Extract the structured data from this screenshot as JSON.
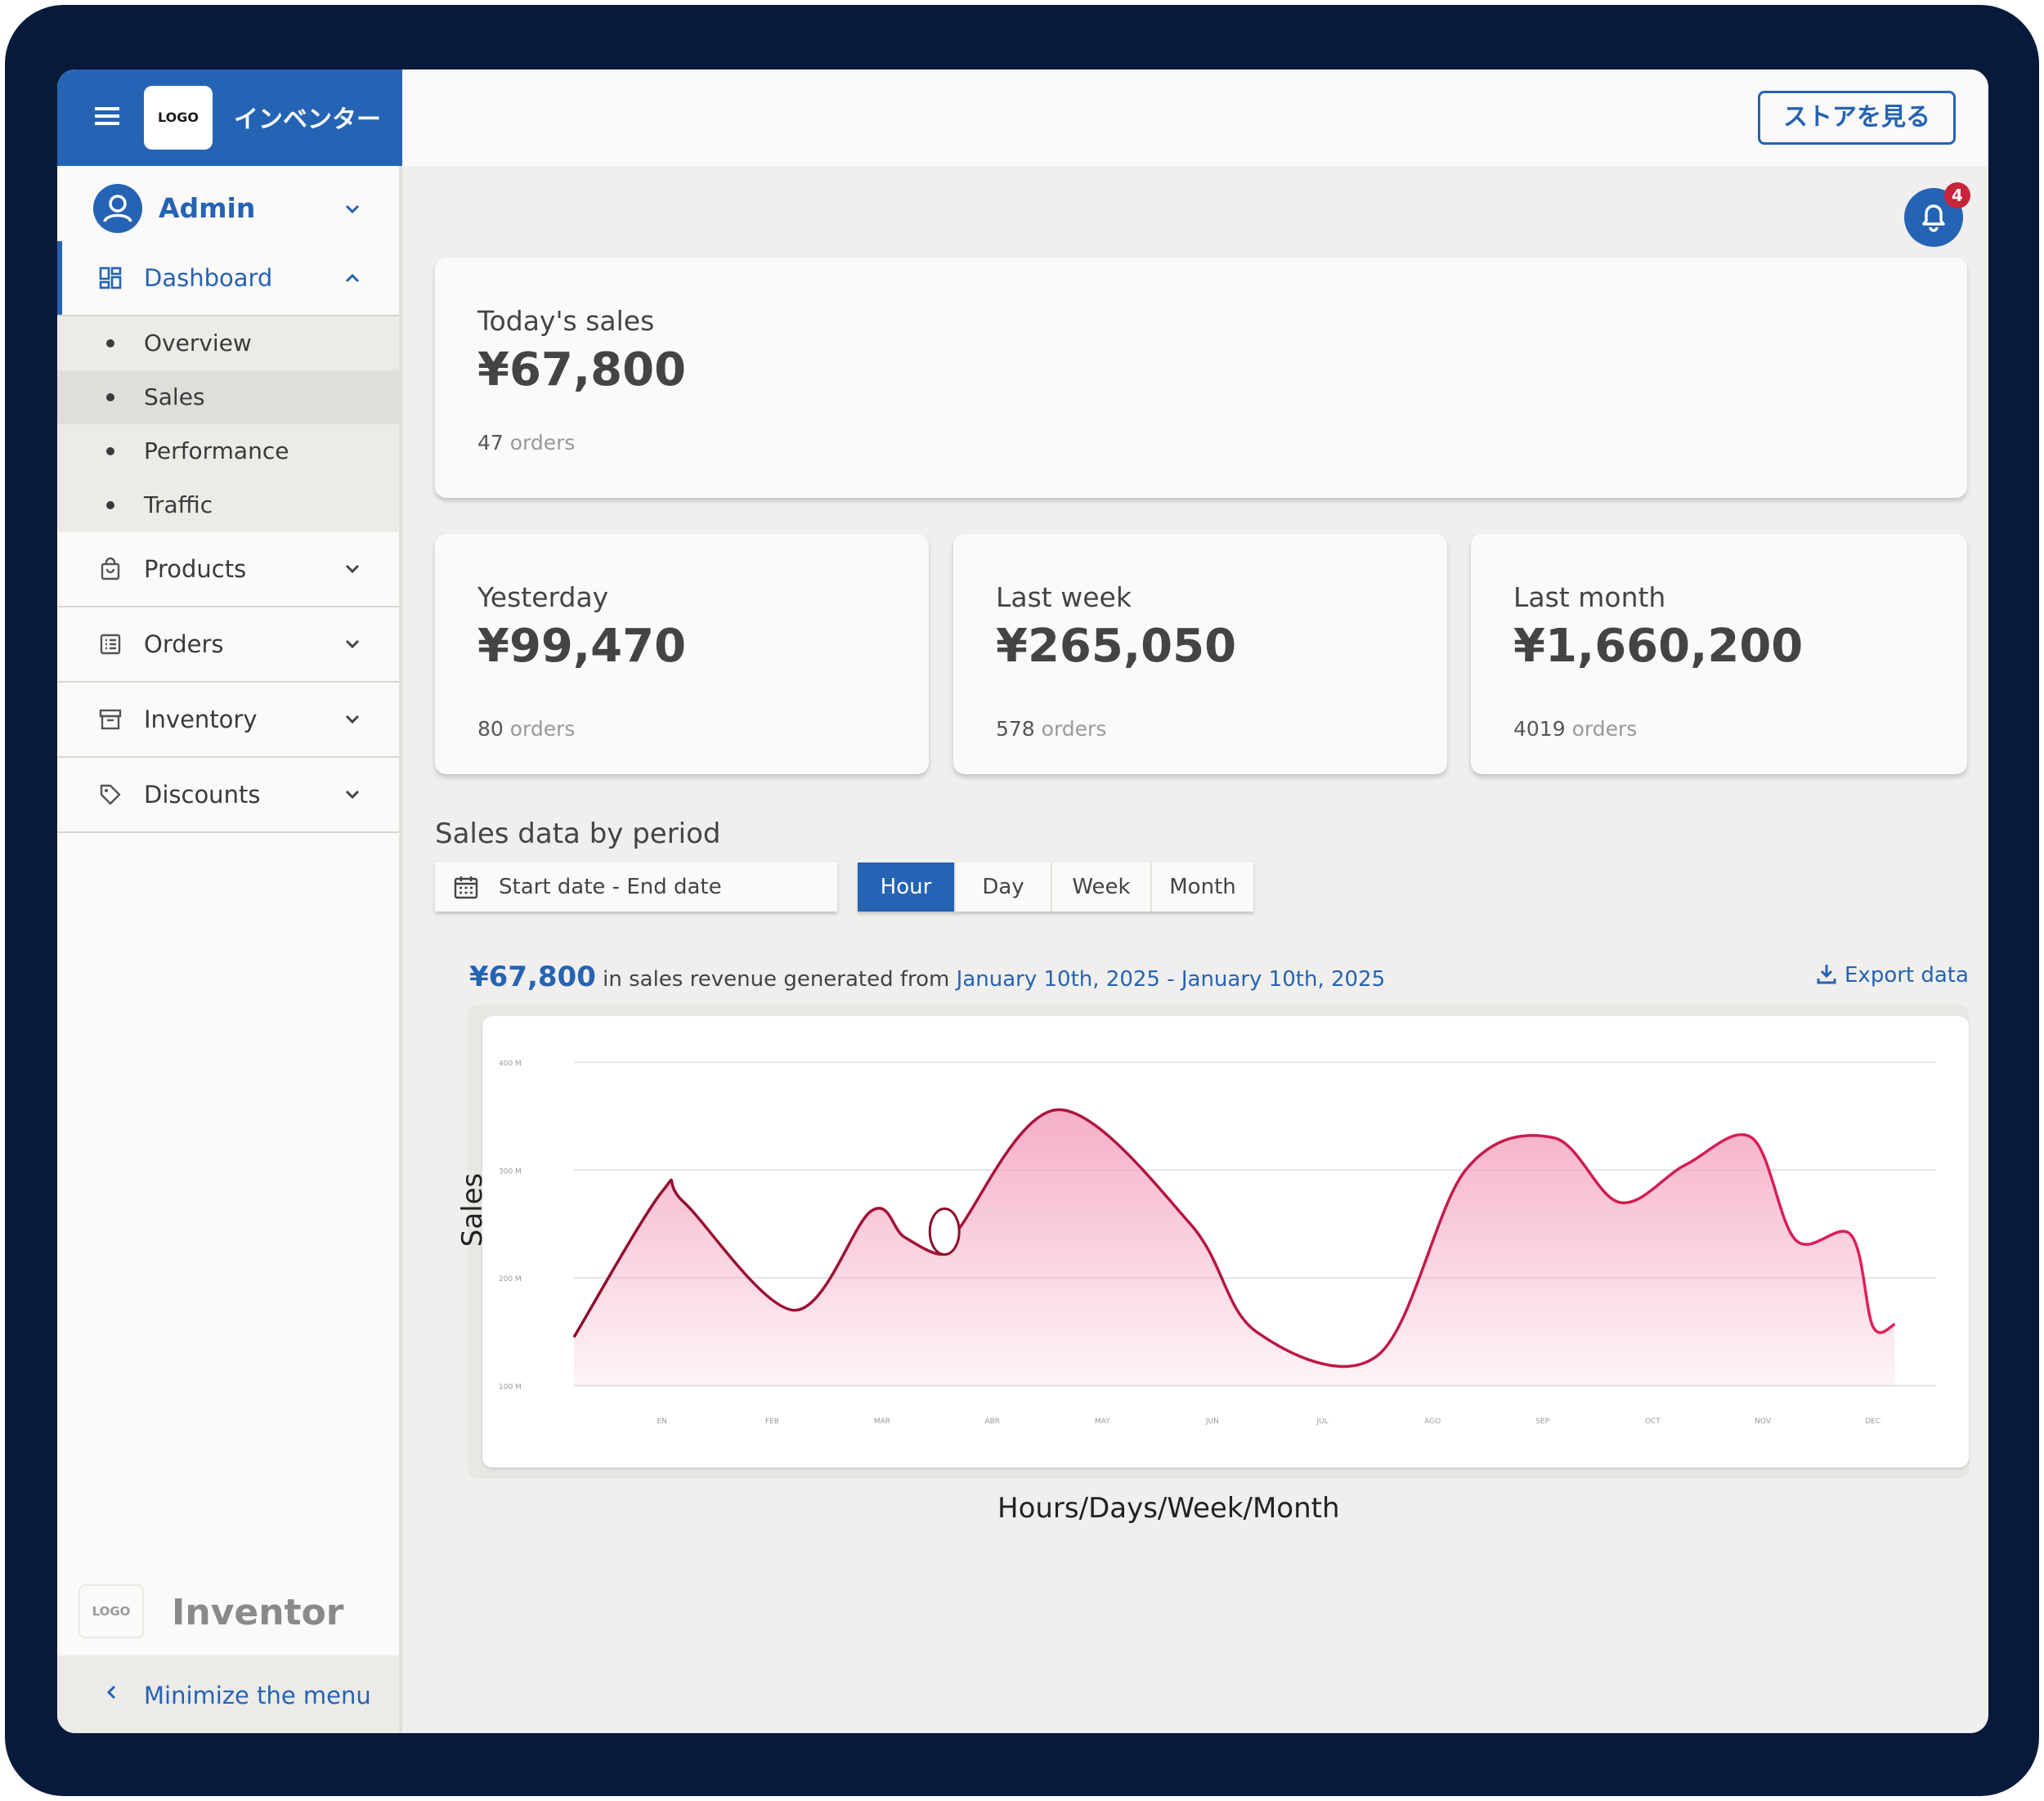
{
  "brand": {
    "logo_text": "LOGO",
    "name": "インベンター"
  },
  "user": {
    "name": "Admin"
  },
  "sidebar": {
    "items": [
      {
        "label": "Dashboard",
        "icon": "dashboard-icon",
        "expanded": true
      },
      {
        "label": "Products",
        "icon": "bag-icon"
      },
      {
        "label": "Orders",
        "icon": "list-icon"
      },
      {
        "label": "Inventory",
        "icon": "archive-icon"
      },
      {
        "label": "Discounts",
        "icon": "tag-icon"
      }
    ],
    "submenu": [
      "Overview",
      "Sales",
      "Performance",
      "Traffic"
    ],
    "selected_sub": "Sales",
    "footer_logo": "LOGO",
    "footer_name": "Inventor",
    "minimize_label": "Minimize the menu"
  },
  "topbar": {
    "store_button": "ストアを見る"
  },
  "notifications": {
    "count": "4"
  },
  "cards": {
    "today": {
      "title": "Today's sales",
      "value": "¥67,800",
      "orders": "47",
      "orders_suffix": "orders"
    },
    "yesterday": {
      "title": "Yesterday",
      "value": "¥99,470",
      "orders": "80",
      "orders_suffix": "orders"
    },
    "last_week": {
      "title": "Last week",
      "value": "¥265,050",
      "orders": "578",
      "orders_suffix": "orders"
    },
    "last_month": {
      "title": "Last month",
      "value": "¥1,660,200",
      "orders": "4019",
      "orders_suffix": "orders"
    }
  },
  "sales_section": {
    "title": "Sales data by period",
    "date_placeholder": "Start date - End date",
    "periods": [
      "Hour",
      "Day",
      "Week",
      "Month"
    ],
    "active_period": "Hour",
    "summary_amount": "¥67,800",
    "summary_text": "in sales revenue generated from",
    "summary_range": "January 10th, 2025 - January 10th, 2025",
    "export_label": "Export data"
  },
  "chart_data": {
    "type": "area",
    "xlabel": "Hours/Days/Week/Month",
    "ylabel": "Sales",
    "y_ticks": [
      "100 M",
      "200 M",
      "300 M",
      "400 M"
    ],
    "ylim": [
      100,
      420
    ],
    "categories": [
      "EN",
      "FEB",
      "MAR",
      "ABR",
      "MAY",
      "JUN",
      "JUL",
      "AGO",
      "SEP",
      "OCT",
      "NOV",
      "DEC"
    ],
    "x": [
      0.0,
      0.8,
      1.0,
      2.0,
      2.7,
      3.0,
      3.35,
      3.5,
      4.4,
      5.6,
      6.2,
      7.3,
      8.1,
      8.9,
      9.5,
      10.1,
      10.7,
      11.1,
      11.6,
      11.8,
      12.0
    ],
    "values": [
      145,
      280,
      270,
      170,
      262,
      238,
      222,
      246,
      356,
      250,
      150,
      128,
      300,
      330,
      270,
      305,
      330,
      235,
      240,
      155,
      157
    ],
    "colors": {
      "line_start": "#8e0e2a",
      "line_end": "#e0205a",
      "fill": "#f4a6c2"
    },
    "grid": true,
    "legend": "none"
  }
}
